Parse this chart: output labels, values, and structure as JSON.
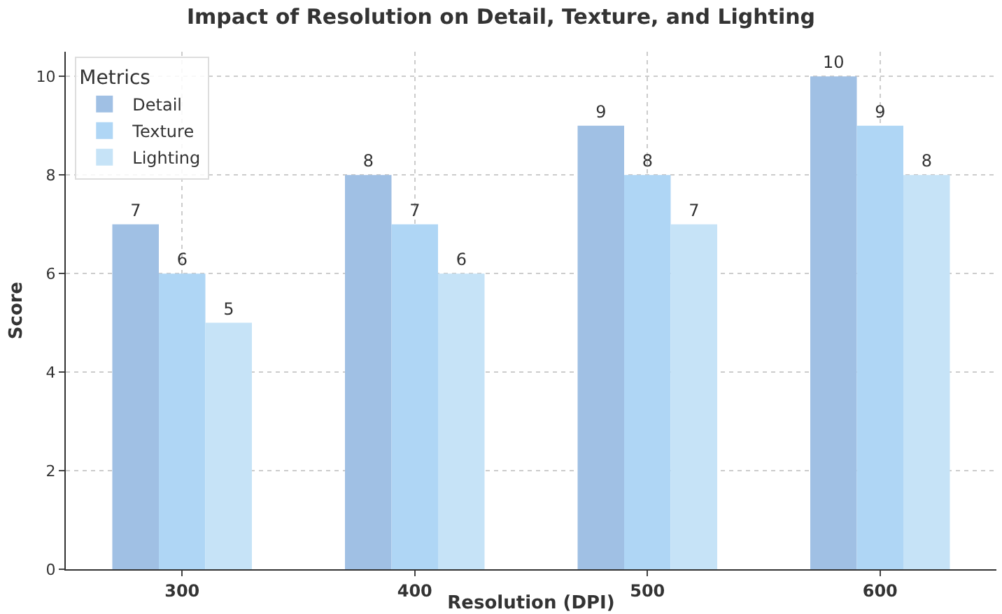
{
  "chart_data": {
    "type": "bar",
    "title": "Impact of Resolution on Detail, Texture, and Lighting",
    "xlabel": "Resolution (DPI)",
    "ylabel": "Score",
    "legend_title": "Metrics",
    "categories": [
      "300",
      "400",
      "500",
      "600"
    ],
    "series": [
      {
        "name": "Detail",
        "color": "#a0c0e4",
        "values": [
          7,
          8,
          9,
          10
        ]
      },
      {
        "name": "Texture",
        "color": "#afd6f5",
        "values": [
          6,
          7,
          8,
          9
        ]
      },
      {
        "name": "Lighting",
        "color": "#c6e3f7",
        "values": [
          5,
          6,
          7,
          8
        ]
      }
    ],
    "ylim": [
      0,
      10.5
    ],
    "yticks": [
      0,
      2,
      4,
      6,
      8,
      10
    ],
    "grid": true,
    "legend": "top left",
    "data_labels": true
  }
}
